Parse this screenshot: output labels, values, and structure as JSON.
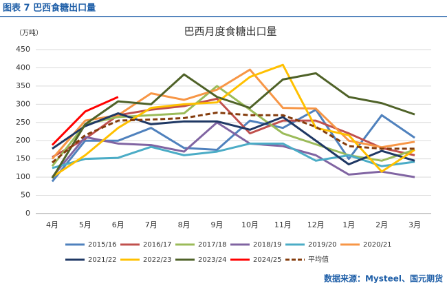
{
  "header": "图表 7 巴西食糖出口量",
  "source": "数据来源：Mysteel、国元期货",
  "chart_data": {
    "type": "line",
    "title": "巴西月度食糖出口量",
    "y_label": "（万吨）",
    "categories": [
      "4月",
      "5月",
      "6月",
      "7月",
      "8月",
      "9月",
      "10月",
      "11月",
      "12月",
      "1月",
      "2月",
      "3月"
    ],
    "ylim": [
      0,
      450
    ],
    "yticks": [
      0,
      50,
      100,
      150,
      200,
      250,
      300,
      350,
      400,
      450
    ],
    "grid": true,
    "series": [
      {
        "name": "2015/16",
        "color": "#4f81bd",
        "values": [
          88,
          200,
          200,
          235,
          180,
          175,
          255,
          235,
          285,
          150,
          270,
          208
        ]
      },
      {
        "name": "2016/17",
        "color": "#c0504d",
        "values": [
          155,
          205,
          270,
          285,
          295,
          315,
          220,
          255,
          255,
          220,
          180,
          160
        ]
      },
      {
        "name": "2017/18",
        "color": "#9bbb59",
        "values": [
          130,
          245,
          265,
          270,
          275,
          350,
          285,
          220,
          190,
          160,
          145,
          175
        ]
      },
      {
        "name": "2018/19",
        "color": "#8064a2",
        "values": [
          100,
          210,
          192,
          188,
          170,
          250,
          192,
          185,
          160,
          107,
          115,
          100
        ]
      },
      {
        "name": "2019/20",
        "color": "#4bacc6",
        "values": [
          125,
          150,
          153,
          183,
          160,
          170,
          192,
          192,
          145,
          160,
          130,
          142
        ]
      },
      {
        "name": "2020/21",
        "color": "#f79646",
        "values": [
          150,
          255,
          270,
          330,
          312,
          340,
          395,
          290,
          288,
          200,
          182,
          197
        ]
      },
      {
        "name": "2021/22",
        "color": "#1f3864",
        "values": [
          178,
          240,
          275,
          245,
          253,
          253,
          230,
          265,
          200,
          135,
          172,
          145
        ]
      },
      {
        "name": "2022/23",
        "color": "#ffc000",
        "values": [
          100,
          160,
          235,
          290,
          300,
          305,
          375,
          408,
          235,
          215,
          115,
          175
        ]
      },
      {
        "name": "2023/24",
        "color": "#4f6228",
        "values": [
          97,
          245,
          308,
          300,
          382,
          320,
          290,
          368,
          385,
          320,
          303,
          272
        ]
      },
      {
        "name": "2024/25",
        "color": "#ff0000",
        "values": [
          188,
          280,
          320,
          null,
          null,
          null,
          null,
          null,
          null,
          null,
          null,
          null
        ]
      },
      {
        "name": "平均值",
        "color": "#843c0c",
        "dashed": true,
        "values": [
          140,
          215,
          255,
          258,
          262,
          277,
          270,
          270,
          238,
          185,
          178,
          178
        ]
      }
    ]
  }
}
